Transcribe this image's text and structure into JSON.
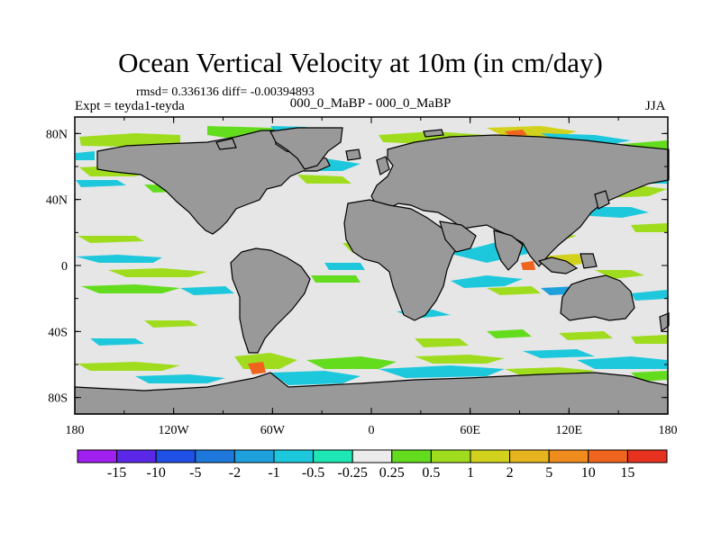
{
  "title": "Ocean Vertical Velocity at 10m (in cm/day)",
  "stats": "rmsd= 0.336136 diff= -0.00394893",
  "experiment_label": "Expt = teyda1-teyda",
  "experiment_periods": "000_0_MaBP - 000_0_MaBP",
  "season": "JJA",
  "map": {
    "ocean_color": "#e6e6e6",
    "land_color": "#999999",
    "x_ticks": [
      "180",
      "120W",
      "60W",
      "0",
      "60E",
      "120E",
      "180"
    ],
    "y_ticks": [
      "80N",
      "40N",
      "0",
      "40S",
      "80S"
    ]
  },
  "colorbar": {
    "labels": [
      "-15",
      "-10",
      "-5",
      "-2",
      "-1",
      "-0.5",
      "-0.25",
      "0.25",
      "0.5",
      "1",
      "2",
      "5",
      "10",
      "15"
    ],
    "colors": [
      "#a020f0",
      "#5a28e6",
      "#1e50e6",
      "#1e78dc",
      "#1ea0dc",
      "#1ec8dc",
      "#1ee6b4",
      "#ebebeb",
      "#64dc1e",
      "#a0dc1e",
      "#d2d21e",
      "#e6b41e",
      "#f08c1e",
      "#f0641e",
      "#e6321e"
    ]
  }
}
